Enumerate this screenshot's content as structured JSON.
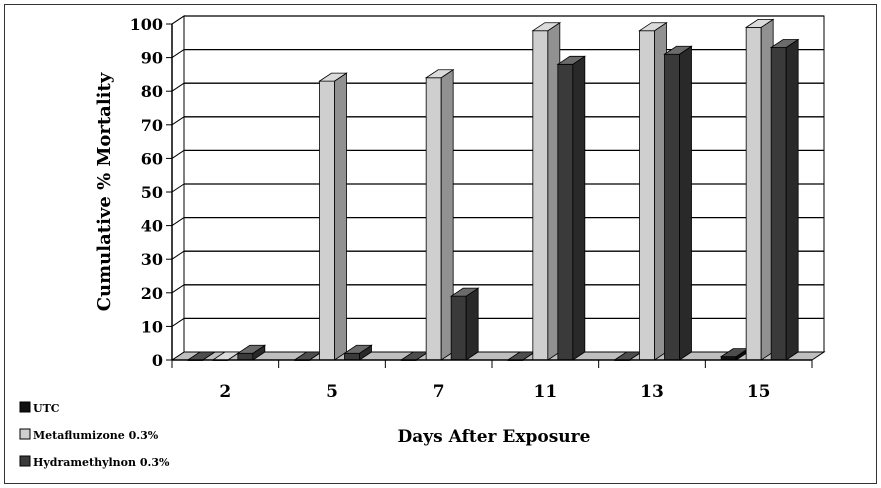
{
  "chart_data": {
    "type": "bar",
    "title": "",
    "xlabel": "Days After Exposure",
    "ylabel": "Cumulative % Mortality",
    "ylim": [
      0,
      100
    ],
    "yticks": [
      0,
      10,
      20,
      30,
      40,
      50,
      60,
      70,
      80,
      90,
      100
    ],
    "categories": [
      "2",
      "5",
      "7",
      "11",
      "13",
      "15"
    ],
    "grid": true,
    "legend_position": "bottom-left",
    "series": [
      {
        "name": "UTC",
        "color": "#111111",
        "values": [
          0,
          0,
          0,
          0,
          0,
          1
        ]
      },
      {
        "name": "Metaflumizone 0.3%",
        "color": "#cfcfcf",
        "values": [
          0,
          83,
          84,
          98,
          98,
          99
        ]
      },
      {
        "name": "Hydramethylnon 0.3%",
        "color": "#3a3a3a",
        "values": [
          2,
          2,
          19,
          88,
          91,
          93
        ]
      }
    ]
  }
}
